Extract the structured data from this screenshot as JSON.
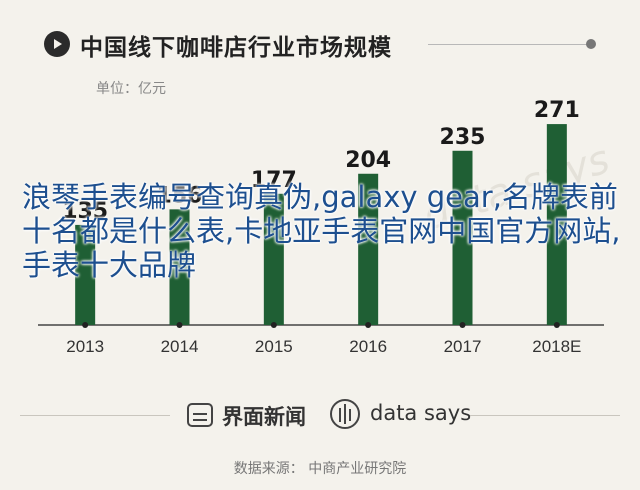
{
  "header": {
    "title": "中国线下咖啡店行业市场规模",
    "unit": "单位：亿元"
  },
  "overlay": {
    "text": "浪琴手表编号查询真伪,galaxy gear,名牌表前十名都是什么表,卡地亚手表官网中国官方网站,手表十大品牌"
  },
  "watermark": {
    "text": "data says"
  },
  "footer": {
    "brand_jiemian": "界面新闻",
    "brand_datasays": "data says",
    "source": "数据来源： 中商产业研究院"
  },
  "colors": {
    "bar": "#1f5f34",
    "background": "#f4f2ec",
    "axis": "#444444",
    "overlay_text": "#1d4f8f"
  },
  "chart_data": {
    "type": "bar",
    "title": "中国线下咖啡店行业市场规模",
    "ylabel": "单位：亿元",
    "categories": [
      "2013",
      "2014",
      "2015",
      "2016",
      "2017",
      "2018E"
    ],
    "values": [
      135,
      156,
      177,
      204,
      235,
      271
    ],
    "data_labels": [
      "135",
      "156",
      "177",
      "204",
      "235",
      "271"
    ],
    "ylim": [
      0,
      290
    ],
    "grid": false,
    "legend": "none"
  }
}
